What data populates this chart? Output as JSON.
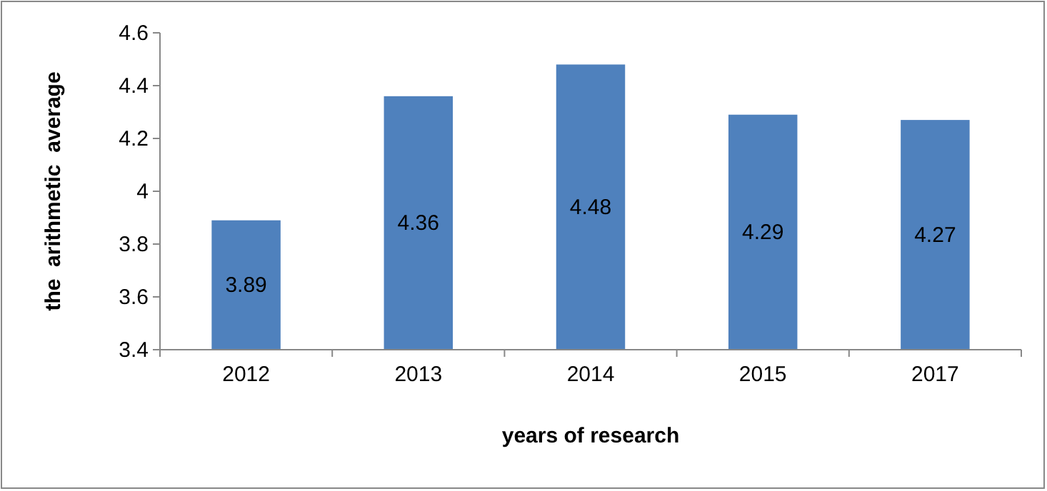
{
  "chart_data": {
    "type": "bar",
    "categories": [
      "2012",
      "2013",
      "2014",
      "2015",
      "2017"
    ],
    "values": [
      3.89,
      4.36,
      4.48,
      4.29,
      4.27
    ],
    "color": "#4f81bd",
    "ylim": [
      3.4,
      4.6
    ],
    "yticks": [
      3.4,
      3.6,
      3.8,
      4,
      4.2,
      4.4,
      4.6
    ],
    "grid": false,
    "data_labels": true,
    "xlabel": "years of research",
    "ylabel": "the  arithmetic  average"
  }
}
